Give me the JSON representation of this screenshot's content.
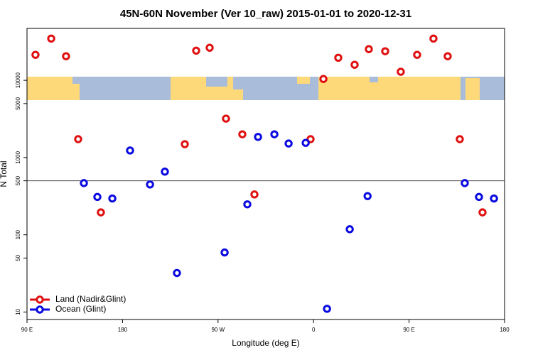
{
  "chart_data": {
    "type": "scatter",
    "title": "45N-60N November (Ver 10_raw)   2015-01-01 to 2020-12-31",
    "x_label": "Longitude (deg E)",
    "y_label": "N Total",
    "xlim": [
      90,
      540
    ],
    "ylim": [
      8,
      47000
    ],
    "log_y": true,
    "xticks": [
      {
        "value": 90,
        "label": "90 E"
      },
      180,
      {
        "value": 270,
        "label": "90 W"
      },
      {
        "value": 360,
        "label": "0"
      },
      {
        "value": 450,
        "label": "90 E"
      },
      {
        "value": 540,
        "label": "180"
      }
    ],
    "yticks": [
      10,
      50,
      100,
      500,
      1000,
      5000,
      10000
    ],
    "hline": 500,
    "legend": "lower left",
    "series": [
      {
        "name": "Land (Nadir&Glint)",
        "color": "#e01010",
        "x": [
          98,
          112.8,
          126.8,
          138.2,
          159.6,
          238.7,
          249.4,
          262.1,
          277.5,
          292.9,
          304.3,
          357.2,
          369.3,
          383.3,
          398.7,
          412.1,
          427.5,
          442.2,
          457.6,
          473.0,
          486.4,
          497.8,
          519.2
        ],
        "values": [
          21400,
          34700,
          20500,
          1730,
          195,
          1490,
          24200,
          26400,
          3190,
          2000,
          333,
          1730,
          10400,
          19600,
          15900,
          25300,
          23800,
          12900,
          21400,
          34700,
          20500,
          1730,
          195
        ]
      },
      {
        "name": "Ocean (Glint)",
        "color": "#0a0ae0",
        "x": [
          143.6,
          156.3,
          170.4,
          187.1,
          205.9,
          219.9,
          231.3,
          276.2,
          297.6,
          307.7,
          323.1,
          336.5,
          352.6,
          372.7,
          394.1,
          410.9,
          502.5,
          515.9,
          530
        ],
        "values": [
          467,
          309,
          295,
          1234,
          448,
          657,
          32,
          59,
          248,
          1850,
          2000,
          1520,
          1550,
          11,
          118,
          317,
          467,
          309,
          295
        ]
      }
    ]
  }
}
